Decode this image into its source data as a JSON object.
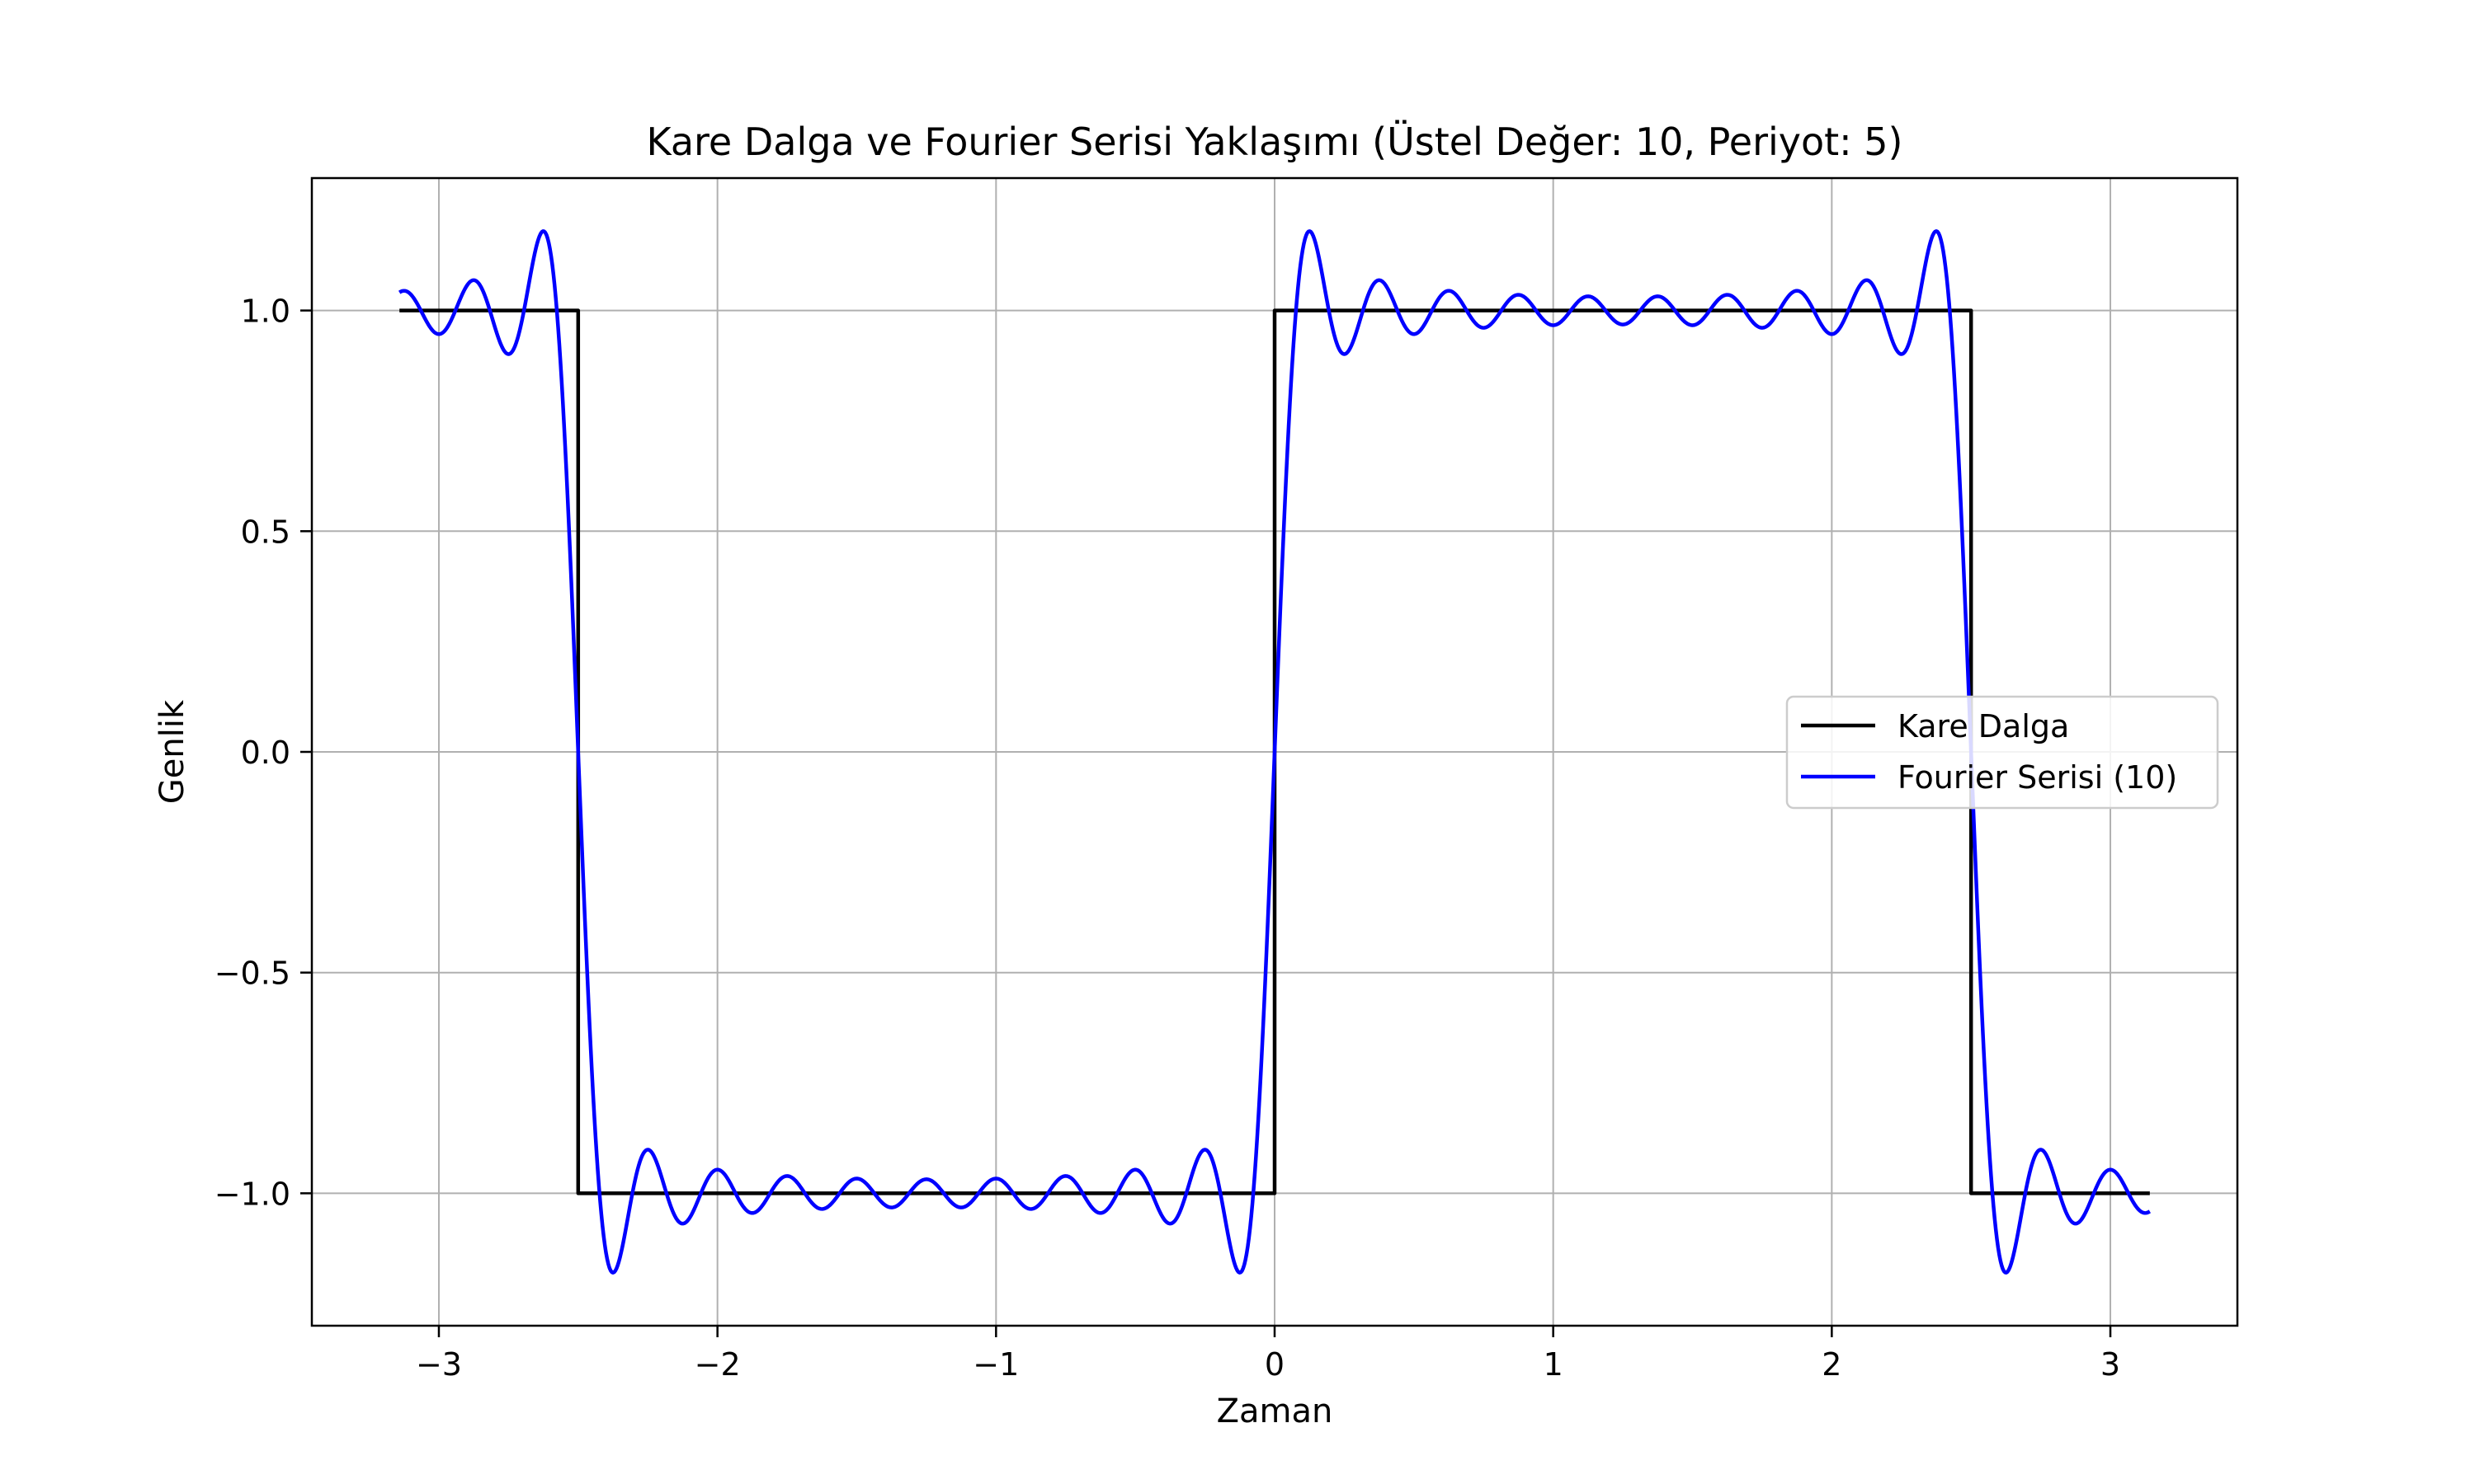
{
  "chart_data": {
    "type": "line",
    "title": "Kare Dalga ve Fourier Serisi Yaklaşımı (Üstel Değer: 10, Periyot: 5)",
    "xlabel": "Zaman",
    "ylabel": "Genlik",
    "xlim": [
      -3.456,
      3.456
    ],
    "ylim": [
      -1.3,
      1.3
    ],
    "xticks": [
      -3,
      -2,
      -1,
      0,
      1,
      2,
      3
    ],
    "xtick_labels": [
      "−3",
      "−2",
      "−1",
      "0",
      "1",
      "2",
      "3"
    ],
    "yticks": [
      -1.0,
      -0.5,
      0.0,
      0.5,
      1.0
    ],
    "ytick_labels": [
      "−1.0",
      "−0.5",
      "0.0",
      "0.5",
      "1.0"
    ],
    "grid": true,
    "legend_position": "center-right",
    "x_range": [
      -3.14159,
      3.14159
    ],
    "period": 5,
    "harmonics": 10,
    "series": [
      {
        "name": "Kare Dalga",
        "color": "#000000",
        "kind": "step",
        "points": [
          [
            -3.14159,
            1
          ],
          [
            -2.5,
            1
          ],
          [
            -2.5,
            -1
          ],
          [
            0,
            -1
          ],
          [
            0,
            1
          ],
          [
            2.5,
            1
          ],
          [
            2.5,
            -1
          ],
          [
            3.14159,
            -1
          ]
        ]
      },
      {
        "name": "Fourier Serisi (10)",
        "color": "#0000ff",
        "kind": "fourier",
        "terms": 10
      }
    ]
  }
}
